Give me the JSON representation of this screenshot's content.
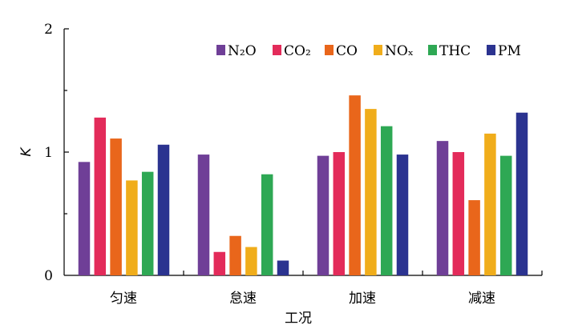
{
  "chart_data": {
    "type": "bar",
    "categories": [
      "匀速",
      "怠速",
      "加速",
      "减速"
    ],
    "series": [
      {
        "name": "N₂O",
        "color": "#6f3f97",
        "values": [
          0.92,
          0.98,
          0.97,
          1.09
        ]
      },
      {
        "name": "CO₂",
        "color": "#e32b5a",
        "values": [
          1.28,
          0.19,
          1.0,
          1.0
        ]
      },
      {
        "name": "CO",
        "color": "#e9661b",
        "values": [
          1.11,
          0.32,
          1.46,
          0.61
        ]
      },
      {
        "name": "NOₓ",
        "color": "#f0ad1b",
        "values": [
          0.77,
          0.23,
          1.35,
          1.15
        ]
      },
      {
        "name": "THC",
        "color": "#2ea854",
        "values": [
          0.84,
          0.82,
          1.21,
          0.97
        ]
      },
      {
        "name": "PM",
        "color": "#2b3390",
        "values": [
          1.06,
          0.12,
          0.98,
          1.32
        ]
      }
    ],
    "xlabel": "工况",
    "ylabel": "K",
    "ylim": [
      0,
      2
    ],
    "yticks": [
      "0",
      "1",
      "2"
    ],
    "legend_position": "top-right",
    "grid": false
  }
}
